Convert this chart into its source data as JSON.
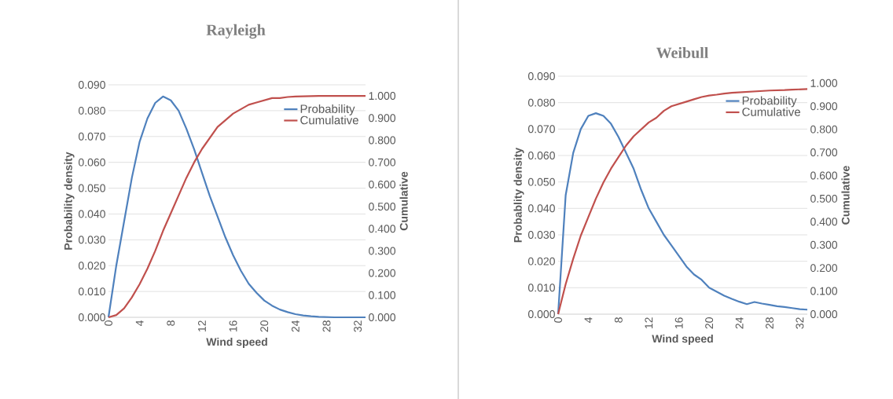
{
  "chart_data": [
    {
      "type": "line",
      "title": "Rayleigh",
      "xlabel": "Wind speed",
      "ylabel": "Probability density",
      "y2label": "Cumulative",
      "x": [
        0,
        1,
        2,
        3,
        4,
        5,
        6,
        7,
        8,
        9,
        10,
        11,
        12,
        13,
        14,
        15,
        16,
        17,
        18,
        19,
        20,
        21,
        22,
        23,
        24,
        25,
        26,
        27,
        28,
        29,
        30,
        31,
        32,
        33
      ],
      "series": [
        {
          "name": "Probability",
          "color": "#4f81bd",
          "values": [
            0,
            0.02,
            0.037,
            0.054,
            0.068,
            0.077,
            0.083,
            0.0855,
            0.084,
            0.08,
            0.073,
            0.065,
            0.056,
            0.047,
            0.039,
            0.031,
            0.024,
            0.018,
            0.013,
            0.0095,
            0.0065,
            0.0045,
            0.003,
            0.002,
            0.0012,
            0.0007,
            0.0004,
            0.0002,
            0.0001,
            0,
            0,
            0,
            0,
            0
          ]
        },
        {
          "name": "Cumulative",
          "color": "#c0504d",
          "axis": "y2",
          "values": [
            0,
            0.01,
            0.04,
            0.09,
            0.15,
            0.22,
            0.3,
            0.39,
            0.47,
            0.55,
            0.63,
            0.7,
            0.76,
            0.81,
            0.86,
            0.89,
            0.92,
            0.94,
            0.96,
            0.97,
            0.98,
            0.99,
            0.99,
            0.995,
            0.997,
            0.998,
            0.999,
            1.0,
            1.0,
            1.0,
            1.0,
            1.0,
            1.0,
            1.0
          ]
        }
      ],
      "xlim": [
        0,
        33
      ],
      "xticks": [
        0,
        4,
        8,
        12,
        16,
        20,
        24,
        28,
        32
      ],
      "ylim": [
        0,
        0.09
      ],
      "yticks": [
        {
          "value": 0,
          "label": "0.000"
        },
        {
          "value": 0.01,
          "label": "0.010"
        },
        {
          "value": 0.02,
          "label": "0.020"
        },
        {
          "value": 0.03,
          "label": "0.030"
        },
        {
          "value": 0.04,
          "label": "0.040"
        },
        {
          "value": 0.05,
          "label": "0.050"
        },
        {
          "value": 0.06,
          "label": "0.060"
        },
        {
          "value": 0.07,
          "label": "0.070"
        },
        {
          "value": 0.08,
          "label": "0.080"
        },
        {
          "value": 0.09,
          "label": "0.090"
        }
      ],
      "y2lim": [
        0,
        1.05
      ],
      "y2ticks": [
        {
          "value": 0,
          "label": "0.000"
        },
        {
          "value": 0.1,
          "label": "0.100"
        },
        {
          "value": 0.2,
          "label": "0.200"
        },
        {
          "value": 0.3,
          "label": "0.300"
        },
        {
          "value": 0.4,
          "label": "0.400"
        },
        {
          "value": 0.5,
          "label": "0.500"
        },
        {
          "value": 0.6,
          "label": "0.600"
        },
        {
          "value": 0.7,
          "label": "0.700"
        },
        {
          "value": 0.8,
          "label": "0.800"
        },
        {
          "value": 0.9,
          "label": "0.900"
        },
        {
          "value": 1,
          "label": "1.000"
        }
      ],
      "grid": "y",
      "legend": "top right"
    },
    {
      "type": "line",
      "title": "Weibull",
      "xlabel": "Wind speed",
      "ylabel": "Probablity density",
      "y2label": "Cumulative",
      "x": [
        0,
        1,
        2,
        3,
        4,
        5,
        6,
        7,
        8,
        9,
        10,
        11,
        12,
        13,
        14,
        15,
        16,
        17,
        18,
        19,
        20,
        21,
        22,
        23,
        24,
        25,
        26,
        27,
        28,
        29,
        30,
        31,
        32,
        33
      ],
      "series": [
        {
          "name": "Probability",
          "color": "#4f81bd",
          "values": [
            0,
            0.045,
            0.061,
            0.07,
            0.075,
            0.076,
            0.075,
            0.072,
            0.067,
            0.061,
            0.055,
            0.047,
            0.04,
            0.035,
            0.03,
            0.026,
            0.022,
            0.018,
            0.015,
            0.013,
            0.01,
            0.0085,
            0.007,
            0.0058,
            0.0047,
            0.0038,
            0.0046,
            0.004,
            0.0035,
            0.003,
            0.0027,
            0.0023,
            0.0019,
            0.0017
          ]
        },
        {
          "name": "Cumulative",
          "color": "#c0504d",
          "axis": "y2",
          "values": [
            0,
            0.13,
            0.24,
            0.34,
            0.42,
            0.5,
            0.57,
            0.63,
            0.68,
            0.73,
            0.77,
            0.8,
            0.83,
            0.85,
            0.88,
            0.9,
            0.91,
            0.92,
            0.93,
            0.94,
            0.946,
            0.95,
            0.955,
            0.958,
            0.96,
            0.962,
            0.964,
            0.966,
            0.968,
            0.969,
            0.97,
            0.972,
            0.973,
            0.974
          ]
        }
      ],
      "xlim": [
        0,
        33
      ],
      "xticks": [
        0,
        4,
        8,
        12,
        16,
        20,
        24,
        28,
        32
      ],
      "ylim": [
        0,
        0.09
      ],
      "yticks": [
        {
          "value": 0,
          "label": "0.000"
        },
        {
          "value": 0.01,
          "label": "0.010"
        },
        {
          "value": 0.02,
          "label": "0.020"
        },
        {
          "value": 0.03,
          "label": "0.030"
        },
        {
          "value": 0.04,
          "label": "0.040"
        },
        {
          "value": 0.05,
          "label": "0.050"
        },
        {
          "value": 0.06,
          "label": "0.060"
        },
        {
          "value": 0.07,
          "label": "0.070"
        },
        {
          "value": 0.08,
          "label": "0.080"
        },
        {
          "value": 0.09,
          "label": "0.090"
        }
      ],
      "y2lim": [
        0,
        1.03
      ],
      "y2ticks": [
        {
          "value": 0,
          "label": "0.000"
        },
        {
          "value": 0.1,
          "label": "0.100"
        },
        {
          "value": 0.2,
          "label": "0.200"
        },
        {
          "value": 0.3,
          "label": "0.300"
        },
        {
          "value": 0.4,
          "label": "0.400"
        },
        {
          "value": 0.5,
          "label": "0.500"
        },
        {
          "value": 0.6,
          "label": "0.600"
        },
        {
          "value": 0.7,
          "label": "0.700"
        },
        {
          "value": 0.8,
          "label": "0.800"
        },
        {
          "value": 0.9,
          "label": "0.900"
        },
        {
          "value": 1,
          "label": "1.000"
        }
      ],
      "grid": "y",
      "legend": "top right"
    }
  ]
}
